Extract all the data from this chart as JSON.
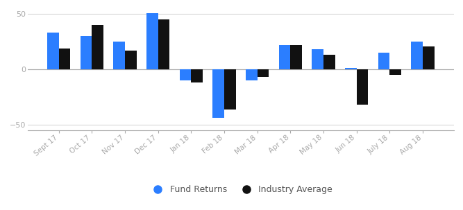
{
  "categories": [
    "Sept 17",
    "Oct 17",
    "Nov 17",
    "Dec 17",
    "Jan 18",
    "Feb 18",
    "Mar 18",
    "Apr 18",
    "May 18",
    "Jun 18",
    "July 18",
    "Aug 18"
  ],
  "fund_returns": [
    33,
    30,
    25,
    51,
    -10,
    -44,
    -10,
    22,
    18,
    1,
    15,
    25
  ],
  "industry_average": [
    19,
    40,
    17,
    45,
    -12,
    -36,
    -7,
    22,
    13,
    -32,
    -5,
    21
  ],
  "bar_color_fund": "#2b7eff",
  "bar_color_industry": "#111111",
  "ylim": [
    -55,
    57
  ],
  "yticks": [
    -50,
    0,
    50
  ],
  "background_color": "#ffffff",
  "grid_color": "#d8d8d8",
  "legend_fund": "Fund Returns",
  "legend_industry": "Industry Average",
  "bar_width": 0.35,
  "tick_color": "#aaaaaa",
  "label_color": "#aaaaaa"
}
